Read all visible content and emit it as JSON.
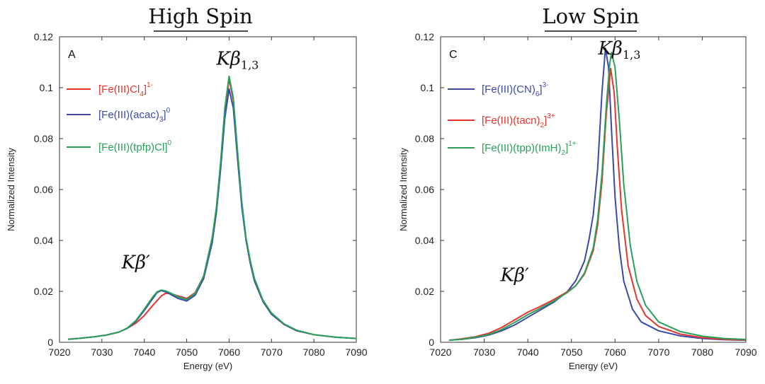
{
  "chart_data": [
    {
      "type": "line",
      "heading": "High Spin",
      "panel_letter": "A",
      "xlabel": "Energy (eV)",
      "ylabel": "Normalized Intensity",
      "xlim": [
        7020,
        7090
      ],
      "ylim": [
        0,
        0.12
      ],
      "xticks": [
        "7020",
        "7030",
        "7040",
        "7050",
        "7060",
        "7070",
        "7080",
        "7090"
      ],
      "yticks": [
        "0",
        "0.02",
        "0.04",
        "0.06",
        "0.08",
        "0.1",
        "0.12"
      ],
      "annotations": [
        {
          "main": "Kβ",
          "sub": "1,3",
          "x": 7062,
          "y": 0.109
        },
        {
          "main": "Kβ′",
          "sub": "",
          "x": 7038,
          "y": 0.029
        }
      ],
      "series": [
        {
          "name": "[Fe(III)Cl4]1-",
          "name_main": "[Fe(III)Cl",
          "name_sub": "4",
          "name_close": "]",
          "name_sup": "1-",
          "color": "#e8332f",
          "points": [
            [
              7022,
              0.0012
            ],
            [
              7025,
              0.0016
            ],
            [
              7028,
              0.0021
            ],
            [
              7031,
              0.0028
            ],
            [
              7034,
              0.004
            ],
            [
              7036,
              0.0055
            ],
            [
              7038,
              0.0075
            ],
            [
              7040,
              0.0105
            ],
            [
              7042,
              0.0145
            ],
            [
              7044,
              0.0182
            ],
            [
              7045,
              0.0192
            ],
            [
              7046,
              0.0192
            ],
            [
              7048,
              0.0182
            ],
            [
              7050,
              0.0172
            ],
            [
              7052,
              0.0195
            ],
            [
              7054,
              0.026
            ],
            [
              7056,
              0.04
            ],
            [
              7057,
              0.052
            ],
            [
              7058,
              0.07
            ],
            [
              7059,
              0.09
            ],
            [
              7060,
              0.1035
            ],
            [
              7061,
              0.095
            ],
            [
              7062,
              0.074
            ],
            [
              7063,
              0.054
            ],
            [
              7064,
              0.04
            ],
            [
              7065,
              0.031
            ],
            [
              7066,
              0.024
            ],
            [
              7068,
              0.016
            ],
            [
              7070,
              0.011
            ],
            [
              7073,
              0.007
            ],
            [
              7076,
              0.0045
            ],
            [
              7080,
              0.003
            ],
            [
              7085,
              0.002
            ],
            [
              7090,
              0.0015
            ]
          ]
        },
        {
          "name": "[Fe(III)(acac)3]0",
          "name_main": "[Fe(III)(acac)",
          "name_sub": "3",
          "name_close": "]",
          "name_sup": "0",
          "color": "#3b49a8",
          "points": [
            [
              7022,
              0.0012
            ],
            [
              7025,
              0.0016
            ],
            [
              7028,
              0.0021
            ],
            [
              7031,
              0.0028
            ],
            [
              7034,
              0.004
            ],
            [
              7036,
              0.0055
            ],
            [
              7038,
              0.0082
            ],
            [
              7040,
              0.0125
            ],
            [
              7042,
              0.0172
            ],
            [
              7043,
              0.0195
            ],
            [
              7044,
              0.0203
            ],
            [
              7045,
              0.0198
            ],
            [
              7046,
              0.019
            ],
            [
              7048,
              0.0172
            ],
            [
              7050,
              0.0162
            ],
            [
              7052,
              0.0185
            ],
            [
              7054,
              0.025
            ],
            [
              7056,
              0.039
            ],
            [
              7057,
              0.051
            ],
            [
              7058,
              0.068
            ],
            [
              7059,
              0.088
            ],
            [
              7060,
              0.0995
            ],
            [
              7061,
              0.092
            ],
            [
              7062,
              0.072
            ],
            [
              7063,
              0.053
            ],
            [
              7064,
              0.04
            ],
            [
              7065,
              0.031
            ],
            [
              7066,
              0.024
            ],
            [
              7068,
              0.016
            ],
            [
              7070,
              0.011
            ],
            [
              7073,
              0.007
            ],
            [
              7076,
              0.0045
            ],
            [
              7080,
              0.003
            ],
            [
              7085,
              0.002
            ],
            [
              7090,
              0.0015
            ]
          ]
        },
        {
          "name": "[Fe(III)(tpfp)Cl]0",
          "name_main": "[Fe(III)(tpfp)Cl]",
          "name_sub": "",
          "name_close": "",
          "name_sup": "0",
          "color": "#2aa05a",
          "points": [
            [
              7022,
              0.0012
            ],
            [
              7025,
              0.0016
            ],
            [
              7028,
              0.0021
            ],
            [
              7031,
              0.0028
            ],
            [
              7034,
              0.004
            ],
            [
              7036,
              0.0056
            ],
            [
              7038,
              0.0085
            ],
            [
              7040,
              0.013
            ],
            [
              7042,
              0.0178
            ],
            [
              7043,
              0.0198
            ],
            [
              7044,
              0.0205
            ],
            [
              7045,
              0.0202
            ],
            [
              7046,
              0.0195
            ],
            [
              7048,
              0.0178
            ],
            [
              7050,
              0.0168
            ],
            [
              7052,
              0.0192
            ],
            [
              7054,
              0.026
            ],
            [
              7056,
              0.041
            ],
            [
              7057,
              0.053
            ],
            [
              7058,
              0.071
            ],
            [
              7059,
              0.092
            ],
            [
              7060,
              0.1045
            ],
            [
              7061,
              0.096
            ],
            [
              7062,
              0.075
            ],
            [
              7063,
              0.055
            ],
            [
              7064,
              0.041
            ],
            [
              7065,
              0.032
            ],
            [
              7066,
              0.025
            ],
            [
              7068,
              0.0165
            ],
            [
              7070,
              0.0115
            ],
            [
              7073,
              0.0072
            ],
            [
              7076,
              0.0047
            ],
            [
              7080,
              0.003
            ],
            [
              7085,
              0.002
            ],
            [
              7090,
              0.0015
            ]
          ]
        }
      ]
    },
    {
      "type": "line",
      "heading": "Low Spin",
      "panel_letter": "C",
      "xlabel": "Energy (eV)",
      "ylabel": "Normalized Intensity",
      "xlim": [
        7020,
        7090
      ],
      "ylim": [
        0,
        0.12
      ],
      "xticks": [
        "7020",
        "7030",
        "7040",
        "7050",
        "7060",
        "7070",
        "7080",
        "7090"
      ],
      "yticks": [
        "0",
        "0.02",
        "0.04",
        "0.06",
        "0.08",
        "0.1",
        "0.12"
      ],
      "annotations": [
        {
          "main": "Kβ",
          "sub": "1,3",
          "x": 7061,
          "y": 0.113
        },
        {
          "main": "Kβ′",
          "sub": "",
          "x": 7037,
          "y": 0.024
        }
      ],
      "series": [
        {
          "name": "[Fe(III)(CN)6]3-",
          "name_main": "[Fe(III)(CN)",
          "name_sub": "6",
          "name_close": "]",
          "name_sup": "3-",
          "color": "#3b49a8",
          "points": [
            [
              7022,
              0.0008
            ],
            [
              7025,
              0.0012
            ],
            [
              7028,
              0.0018
            ],
            [
              7031,
              0.0028
            ],
            [
              7034,
              0.0045
            ],
            [
              7037,
              0.0068
            ],
            [
              7040,
              0.0098
            ],
            [
              7043,
              0.0128
            ],
            [
              7046,
              0.0158
            ],
            [
              7049,
              0.0198
            ],
            [
              7051,
              0.0242
            ],
            [
              7053,
              0.032
            ],
            [
              7054,
              0.04
            ],
            [
              7055,
              0.05
            ],
            [
              7056,
              0.068
            ],
            [
              7057,
              0.098
            ],
            [
              7057.8,
              0.1155
            ],
            [
              7058.5,
              0.108
            ],
            [
              7059.2,
              0.083
            ],
            [
              7060,
              0.057
            ],
            [
              7061,
              0.037
            ],
            [
              7062,
              0.024
            ],
            [
              7064,
              0.013
            ],
            [
              7066,
              0.008
            ],
            [
              7070,
              0.0045
            ],
            [
              7075,
              0.0025
            ],
            [
              7080,
              0.0015
            ],
            [
              7085,
              0.001
            ],
            [
              7090,
              0.0008
            ]
          ]
        },
        {
          "name": "[Fe(III)(tacn)2]3+",
          "name_main": "[Fe(III)(tacn)",
          "name_sub": "2",
          "name_close": "]",
          "name_sup": "3+",
          "color": "#e8332f",
          "points": [
            [
              7022,
              0.0008
            ],
            [
              7025,
              0.0014
            ],
            [
              7028,
              0.0022
            ],
            [
              7031,
              0.0035
            ],
            [
              7034,
              0.0058
            ],
            [
              7037,
              0.0088
            ],
            [
              7040,
              0.0118
            ],
            [
              7043,
              0.0142
            ],
            [
              7046,
              0.0168
            ],
            [
              7049,
              0.0198
            ],
            [
              7051,
              0.0222
            ],
            [
              7053,
              0.0268
            ],
            [
              7055,
              0.036
            ],
            [
              7056,
              0.046
            ],
            [
              7057,
              0.063
            ],
            [
              7058,
              0.09
            ],
            [
              7059,
              0.1075
            ],
            [
              7059.8,
              0.098
            ],
            [
              7060.5,
              0.077
            ],
            [
              7061.5,
              0.052
            ],
            [
              7063,
              0.03
            ],
            [
              7065,
              0.017
            ],
            [
              7067,
              0.0105
            ],
            [
              7070,
              0.0062
            ],
            [
              7075,
              0.0032
            ],
            [
              7080,
              0.0018
            ],
            [
              7085,
              0.0012
            ],
            [
              7090,
              0.0009
            ]
          ]
        },
        {
          "name": "[Fe(III)(tpp)(ImH)2]1+",
          "name_main": "[Fe(III)(tpp)(ImH)",
          "name_sub": "2",
          "name_close": "]",
          "name_sup": "1+",
          "color": "#2aa05a",
          "points": [
            [
              7022,
              0.0008
            ],
            [
              7025,
              0.0012
            ],
            [
              7028,
              0.002
            ],
            [
              7031,
              0.003
            ],
            [
              7034,
              0.005
            ],
            [
              7037,
              0.0078
            ],
            [
              7040,
              0.0108
            ],
            [
              7043,
              0.0135
            ],
            [
              7046,
              0.0162
            ],
            [
              7049,
              0.0195
            ],
            [
              7051,
              0.0222
            ],
            [
              7053,
              0.0272
            ],
            [
              7055,
              0.037
            ],
            [
              7056,
              0.048
            ],
            [
              7057,
              0.066
            ],
            [
              7058,
              0.093
            ],
            [
              7058.8,
              0.1098
            ],
            [
              7059.2,
              0.1138
            ],
            [
              7060,
              0.108
            ],
            [
              7061,
              0.087
            ],
            [
              7062,
              0.062
            ],
            [
              7063.5,
              0.038
            ],
            [
              7065,
              0.024
            ],
            [
              7067,
              0.0145
            ],
            [
              7070,
              0.008
            ],
            [
              7075,
              0.0042
            ],
            [
              7080,
              0.0024
            ],
            [
              7085,
              0.0015
            ],
            [
              7090,
              0.0011
            ]
          ]
        }
      ]
    }
  ]
}
